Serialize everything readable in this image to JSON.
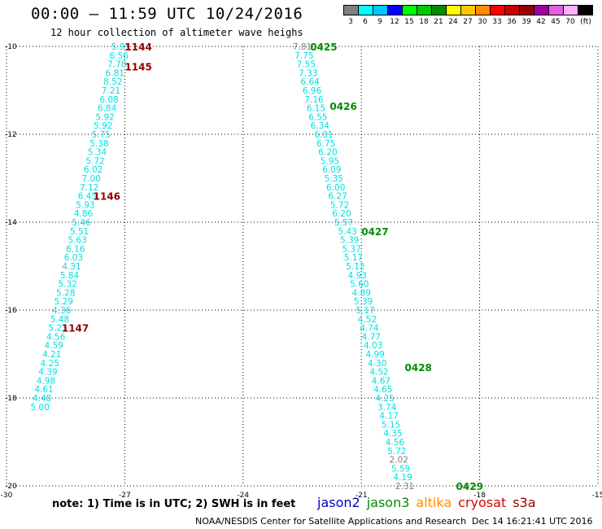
{
  "header": {
    "title": "00:00 – 11:59 UTC 10/24/2016",
    "subtitle": "12 hour collection of altimeter wave heighs"
  },
  "legend": {
    "unit": "(ft)",
    "bins": [
      {
        "label": "3",
        "color": "#808080"
      },
      {
        "label": "6",
        "color": "#00ffff"
      },
      {
        "label": "9",
        "color": "#00c8ff"
      },
      {
        "label": "12",
        "color": "#0000ff"
      },
      {
        "label": "15",
        "color": "#00ff00"
      },
      {
        "label": "18",
        "color": "#00c800"
      },
      {
        "label": "21",
        "color": "#008c00"
      },
      {
        "label": "24",
        "color": "#ffff00"
      },
      {
        "label": "27",
        "color": "#ffc800"
      },
      {
        "label": "30",
        "color": "#ff8c00"
      },
      {
        "label": "33",
        "color": "#ff0000"
      },
      {
        "label": "36",
        "color": "#c80000"
      },
      {
        "label": "39",
        "color": "#960000"
      },
      {
        "label": "42",
        "color": "#a000a0"
      },
      {
        "label": "45",
        "color": "#e060e0"
      },
      {
        "label": "70",
        "color": "#ffb0ff"
      },
      {
        "label": "",
        "color": "#000000"
      }
    ]
  },
  "footer": {
    "note": "note: 1) Time is in UTC; 2) SWH is in feet",
    "satellites": [
      {
        "name": "jason2",
        "color": "#0000cc"
      },
      {
        "name": "jason3",
        "color": "#008c00"
      },
      {
        "name": "altika",
        "color": "#ff8c00"
      },
      {
        "name": "cryosat",
        "color": "#e00000"
      },
      {
        "name": "s3a",
        "color": "#960000"
      }
    ],
    "credit": "NOAA/NESDIS Center for Satellite Applications and Research",
    "timestamp": "Dec 14 16:21:41 UTC 2016"
  },
  "chart_data": {
    "type": "scatter",
    "title": "00:00 – 11:59 UTC 10/24/2016",
    "subtitle": "12 hour collection of altimeter wave heighs",
    "xlabel": "",
    "ylabel": "",
    "xlim": [
      -30,
      -15
    ],
    "ylim": [
      -20,
      -10
    ],
    "x_ticks": [
      "-30",
      "-27",
      "-24",
      "-21",
      "-18",
      "-15"
    ],
    "y_ticks": [
      "-10",
      "-12",
      "-14",
      "-16",
      "-18",
      "-20"
    ],
    "grid": true,
    "series": [
      {
        "name": "cryosat",
        "color": "#00e0e0",
        "points": [
          {
            "x": -27.1,
            "y": -10.0,
            "v": "5.95"
          },
          {
            "x": -27.15,
            "y": -10.2,
            "v": "6.56"
          },
          {
            "x": -27.2,
            "y": -10.4,
            "v": "7.78"
          },
          {
            "x": -27.25,
            "y": -10.6,
            "v": "6.81"
          },
          {
            "x": -27.3,
            "y": -10.8,
            "v": "8.52"
          },
          {
            "x": -27.35,
            "y": -11.0,
            "v": "7.21"
          },
          {
            "x": -27.4,
            "y": -11.2,
            "v": "6.08"
          },
          {
            "x": -27.45,
            "y": -11.4,
            "v": "6.84"
          },
          {
            "x": -27.5,
            "y": -11.6,
            "v": "5.92"
          },
          {
            "x": -27.55,
            "y": -11.8,
            "v": "5.92"
          },
          {
            "x": -27.6,
            "y": -12.0,
            "v": "5.75"
          },
          {
            "x": -27.65,
            "y": -12.2,
            "v": "5.38"
          },
          {
            "x": -27.7,
            "y": -12.4,
            "v": "5.34"
          },
          {
            "x": -27.75,
            "y": -12.6,
            "v": "5.72"
          },
          {
            "x": -27.8,
            "y": -12.8,
            "v": "6.02"
          },
          {
            "x": -27.85,
            "y": -13.0,
            "v": "7.00"
          },
          {
            "x": -27.9,
            "y": -13.2,
            "v": "7.12"
          },
          {
            "x": -27.95,
            "y": -13.4,
            "v": "6.45"
          },
          {
            "x": -28.0,
            "y": -13.6,
            "v": "5.93"
          },
          {
            "x": -28.05,
            "y": -13.8,
            "v": "4.86"
          },
          {
            "x": -28.1,
            "y": -14.0,
            "v": "5.46"
          },
          {
            "x": -28.15,
            "y": -14.2,
            "v": "5.51"
          },
          {
            "x": -28.2,
            "y": -14.4,
            "v": "5.63"
          },
          {
            "x": -28.25,
            "y": -14.6,
            "v": "6.16"
          },
          {
            "x": -28.3,
            "y": -14.8,
            "v": "6.03"
          },
          {
            "x": -28.35,
            "y": -15.0,
            "v": "4.31"
          },
          {
            "x": -28.4,
            "y": -15.2,
            "v": "5.84"
          },
          {
            "x": -28.45,
            "y": -15.4,
            "v": "5.32"
          },
          {
            "x": -28.5,
            "y": -15.6,
            "v": "5.28"
          },
          {
            "x": -28.55,
            "y": -15.8,
            "v": "5.29"
          },
          {
            "x": -28.6,
            "y": -16.0,
            "v": "4.36"
          },
          {
            "x": -28.65,
            "y": -16.2,
            "v": "5.48"
          },
          {
            "x": -28.7,
            "y": -16.4,
            "v": "5.23"
          },
          {
            "x": -28.75,
            "y": -16.6,
            "v": "4.56"
          },
          {
            "x": -28.8,
            "y": -16.8,
            "v": "4.59"
          },
          {
            "x": -28.85,
            "y": -17.0,
            "v": "4.21"
          },
          {
            "x": -28.9,
            "y": -17.2,
            "v": "4.25"
          },
          {
            "x": -28.95,
            "y": -17.4,
            "v": "4.39"
          },
          {
            "x": -29.0,
            "y": -17.6,
            "v": "4.98"
          },
          {
            "x": -29.05,
            "y": -17.8,
            "v": "4.61"
          },
          {
            "x": -29.1,
            "y": -18.0,
            "v": "4.48"
          },
          {
            "x": -29.15,
            "y": -18.2,
            "v": "5.00"
          }
        ],
        "time_labels": [
          {
            "x": -27.0,
            "y": -10.0,
            "t": "1144"
          },
          {
            "x": -27.0,
            "y": -10.45,
            "t": "1145"
          },
          {
            "x": -27.8,
            "y": -13.4,
            "t": "1146"
          },
          {
            "x": -28.6,
            "y": -16.4,
            "t": "1147"
          }
        ]
      },
      {
        "name": "jason3",
        "color": "#00e0e0",
        "points": [
          {
            "x": -22.5,
            "y": -10.0,
            "v": "7.81",
            "c": "#808080"
          },
          {
            "x": -22.45,
            "y": -10.2,
            "v": "7.75"
          },
          {
            "x": -22.4,
            "y": -10.4,
            "v": "7.55"
          },
          {
            "x": -22.35,
            "y": -10.6,
            "v": "7.33"
          },
          {
            "x": -22.3,
            "y": -10.8,
            "v": "6.64"
          },
          {
            "x": -22.25,
            "y": -11.0,
            "v": "6.96"
          },
          {
            "x": -22.2,
            "y": -11.2,
            "v": "7.16"
          },
          {
            "x": -22.15,
            "y": -11.4,
            "v": "6.15"
          },
          {
            "x": -22.1,
            "y": -11.6,
            "v": "6.55"
          },
          {
            "x": -22.05,
            "y": -11.8,
            "v": "6.34"
          },
          {
            "x": -21.95,
            "y": -12.0,
            "v": "6.01"
          },
          {
            "x": -21.9,
            "y": -12.2,
            "v": "6.75"
          },
          {
            "x": -21.85,
            "y": -12.4,
            "v": "6.20"
          },
          {
            "x": -21.8,
            "y": -12.6,
            "v": "5.95"
          },
          {
            "x": -21.75,
            "y": -12.8,
            "v": "6.09"
          },
          {
            "x": -21.7,
            "y": -13.0,
            "v": "5.35"
          },
          {
            "x": -21.65,
            "y": -13.2,
            "v": "6.00"
          },
          {
            "x": -21.6,
            "y": -13.4,
            "v": "6.27"
          },
          {
            "x": -21.55,
            "y": -13.6,
            "v": "5.72"
          },
          {
            "x": -21.5,
            "y": -13.8,
            "v": "6.20"
          },
          {
            "x": -21.45,
            "y": -14.0,
            "v": "5.57"
          },
          {
            "x": -21.35,
            "y": -14.2,
            "v": "5.43"
          },
          {
            "x": -21.3,
            "y": -14.4,
            "v": "5.39"
          },
          {
            "x": -21.25,
            "y": -14.6,
            "v": "5.37"
          },
          {
            "x": -21.2,
            "y": -14.8,
            "v": "5.17"
          },
          {
            "x": -21.15,
            "y": -15.0,
            "v": "5.12"
          },
          {
            "x": -21.1,
            "y": -15.2,
            "v": "4.93"
          },
          {
            "x": -21.05,
            "y": -15.4,
            "v": "5.60"
          },
          {
            "x": -21.0,
            "y": -15.6,
            "v": "4.89"
          },
          {
            "x": -20.95,
            "y": -15.8,
            "v": "5.39"
          },
          {
            "x": -20.9,
            "y": -16.0,
            "v": "5.17"
          },
          {
            "x": -20.85,
            "y": -16.2,
            "v": "4.52"
          },
          {
            "x": -20.8,
            "y": -16.4,
            "v": "4.74"
          },
          {
            "x": -20.75,
            "y": -16.6,
            "v": "4.77"
          },
          {
            "x": -20.7,
            "y": -16.8,
            "v": "4.03"
          },
          {
            "x": -20.65,
            "y": -17.0,
            "v": "4.99"
          },
          {
            "x": -20.6,
            "y": -17.2,
            "v": "4.30"
          },
          {
            "x": -20.55,
            "y": -17.4,
            "v": "4.52"
          },
          {
            "x": -20.5,
            "y": -17.6,
            "v": "4.67"
          },
          {
            "x": -20.45,
            "y": -17.8,
            "v": "4.65"
          },
          {
            "x": -20.4,
            "y": -18.0,
            "v": "4.25"
          },
          {
            "x": -20.35,
            "y": -18.2,
            "v": "3.74"
          },
          {
            "x": -20.3,
            "y": -18.4,
            "v": "4.17"
          },
          {
            "x": -20.25,
            "y": -18.6,
            "v": "5.15"
          },
          {
            "x": -20.2,
            "y": -18.8,
            "v": "4.35"
          },
          {
            "x": -20.15,
            "y": -19.0,
            "v": "4.56"
          },
          {
            "x": -20.1,
            "y": -19.2,
            "v": "5.72"
          },
          {
            "x": -20.05,
            "y": -19.4,
            "v": "2.02",
            "c": "#808080"
          },
          {
            "x": -20.0,
            "y": -19.6,
            "v": "5.59"
          },
          {
            "x": -19.95,
            "y": -19.8,
            "v": "4.19"
          },
          {
            "x": -19.9,
            "y": -20.0,
            "v": "2.31",
            "c": "#808080"
          }
        ],
        "time_labels": [
          {
            "x": -22.3,
            "y": -10.0,
            "t": "0425"
          },
          {
            "x": -21.8,
            "y": -11.35,
            "t": "0426"
          },
          {
            "x": -21.0,
            "y": -14.2,
            "t": "0427"
          },
          {
            "x": -19.9,
            "y": -17.3,
            "t": "0428"
          },
          {
            "x": -18.6,
            "y": -20.0,
            "t": "0429"
          }
        ]
      }
    ]
  }
}
